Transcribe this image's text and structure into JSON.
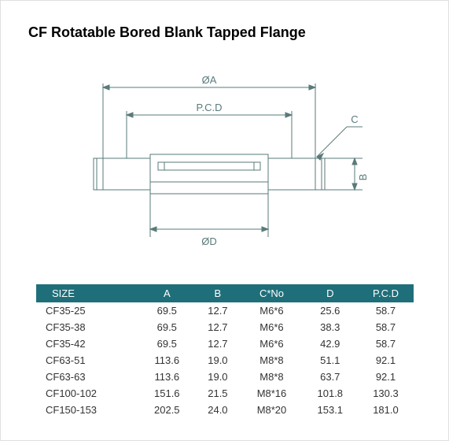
{
  "title": "CF Rotatable  Bored Blank Tapped Flange",
  "diagram": {
    "labels": {
      "top": "ØA",
      "pcd": "P.C.D",
      "bottom": "ØD",
      "rightB": "B",
      "rightC": "C"
    },
    "line_color": "#5a7a7a",
    "line_width": 1,
    "label_fontsize": 13
  },
  "table": {
    "header_bg": "#1f6f7a",
    "header_fg": "#ffffff",
    "body_fg": "#333333",
    "fontsize": 13,
    "columns": [
      "SIZE",
      "A",
      "B",
      "C*No",
      "D",
      "P.C.D"
    ],
    "rows": [
      [
        "CF35-25",
        "69.5",
        "12.7",
        "M6*6",
        "25.6",
        "58.7"
      ],
      [
        "CF35-38",
        "69.5",
        "12.7",
        "M6*6",
        "38.3",
        "58.7"
      ],
      [
        "CF35-42",
        "69.5",
        "12.7",
        "M6*6",
        "42.9",
        "58.7"
      ],
      [
        "CF63-51",
        "113.6",
        "19.0",
        "M8*8",
        "51.1",
        "92.1"
      ],
      [
        "CF63-63",
        "113.6",
        "19.0",
        "M8*8",
        "63.7",
        "92.1"
      ],
      [
        "CF100-102",
        "151.6",
        "21.5",
        "M8*16",
        "101.8",
        "130.3"
      ],
      [
        "CF150-153",
        "202.5",
        "24.0",
        "M8*20",
        "153.1",
        "181.0"
      ]
    ]
  }
}
